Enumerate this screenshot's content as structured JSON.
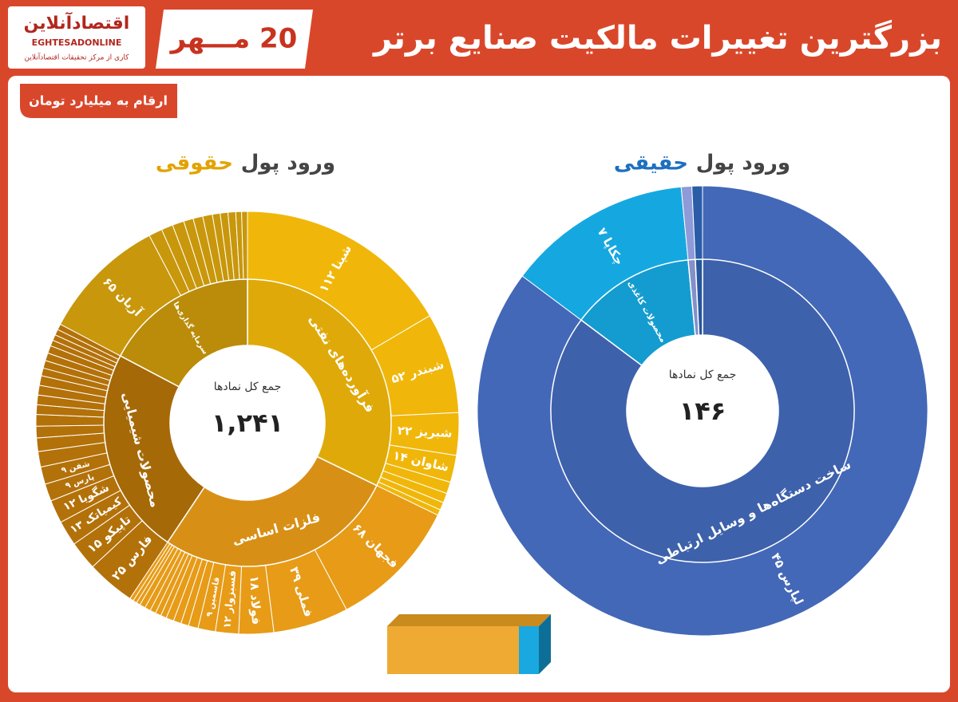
{
  "header": {
    "title": "بزرگترین تغییرات مالکیت صنایع برتر",
    "date": "20 مـــهر",
    "logo": "اقتصادآنلاین",
    "logo_en": "EGHTESADONLINE",
    "logo_sub": "کاری از مرکز تحقیقات اقتصادآنلاین"
  },
  "unit_note": "ارقام به میلیارد تومان",
  "chart_data": [
    {
      "type": "sunburst",
      "title": "ورود پول",
      "title_highlight": "حقوقی",
      "title_color": "#e2a300",
      "center_label": "جمع کل نمادها",
      "total": {
        "value": 1241,
        "label": "۱,۲۴۱"
      },
      "groups": [
        {
          "name": "فرآورده‌های نفتی",
          "color": "#f0b70a",
          "labels": [
            "شپنا ۱۱۲",
            "شبندر ۵۲",
            "شبریز ۲۲",
            "شاوان ۱۴",
            null,
            null,
            null,
            null
          ],
          "values": [
            112,
            52,
            22,
            14,
            6,
            5,
            4,
            3
          ]
        },
        {
          "name": "فلزات اساسی",
          "color": "#e79b17",
          "labels": [
            "فجهان ۶۸",
            "فملی ۳۹",
            "فولاد ۱۸",
            "فسبزوار ۱۲",
            "قاسمین ۹",
            null,
            null,
            null,
            null,
            null,
            null,
            null,
            null,
            null,
            null,
            null,
            null
          ],
          "values": [
            68,
            39,
            18,
            12,
            9,
            5,
            4,
            4,
            4,
            3,
            3,
            3,
            3,
            3,
            2,
            2,
            2
          ]
        },
        {
          "name": "محصولات شیمیایی",
          "color": "#b37109",
          "labels": [
            "فارس ۲۵",
            "تاپیکو ۱۵",
            "کیمیاتک ۱۳",
            "شگویا ۱۲",
            "پارس ۹",
            "شفن ۹",
            null,
            null,
            null,
            null,
            null,
            null,
            null,
            null,
            null,
            null,
            null,
            null,
            null,
            null,
            null,
            null
          ],
          "values": [
            25,
            15,
            13,
            12,
            9,
            9,
            8,
            7,
            6,
            6,
            5,
            5,
            5,
            5,
            4,
            4,
            4,
            4,
            3,
            3,
            3,
            3
          ]
        },
        {
          "name": "سرمایه گذاری‌ها",
          "color": "#c8970b",
          "labels": [
            "آریان ۶۵",
            null,
            null,
            null,
            null,
            null,
            null,
            null,
            null,
            null,
            null,
            null
          ],
          "values": [
            65,
            7,
            6,
            6,
            5,
            5,
            5,
            4,
            4,
            4,
            3,
            3
          ]
        }
      ]
    },
    {
      "type": "sunburst",
      "title": "ورود پول",
      "title_highlight": "حقیقی",
      "title_color": "#1d6fc0",
      "center_label": "جمع کل نمادها",
      "total": {
        "value": 146,
        "label": "۱۴۶"
      },
      "groups": [
        {
          "name": "ساخت دستگاه‌ها و وسایل ارتباطی",
          "color": "#4368b8",
          "labels": [
            "لپارس ۴۵"
          ],
          "values": [
            45
          ]
        },
        {
          "name": "محصولات کاغذی",
          "color": "#15a8e0",
          "labels": [
            "چکاپا ۷"
          ],
          "values": [
            7
          ]
        },
        {
          "name": null,
          "color": "#8e9bd8",
          "labels": [
            null
          ],
          "values": [
            0.4
          ]
        },
        {
          "name": null,
          "color": "#2a5ca8",
          "labels": [
            null
          ],
          "values": [
            0.4
          ]
        }
      ]
    }
  ]
}
